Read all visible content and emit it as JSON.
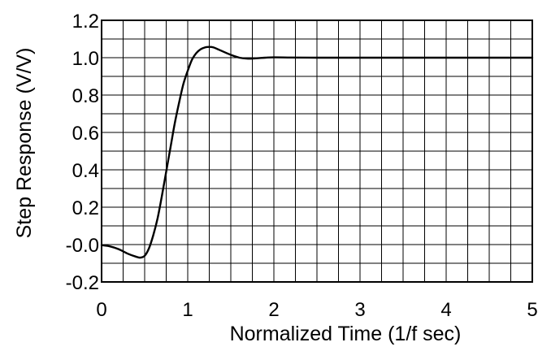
{
  "chart_data": {
    "type": "line",
    "xlabel": "Normalized Time (1/f sec)",
    "ylabel": "Step Response (V/V)",
    "xlim": [
      0,
      5
    ],
    "ylim": [
      -0.2,
      1.2
    ],
    "x_ticks": [
      "0",
      "1",
      "2",
      "3",
      "4",
      "5"
    ],
    "y_ticks": [
      "1.2",
      "1.0",
      "0.8",
      "0.6",
      "0.4",
      "0.2",
      "-0.0",
      "-0.2"
    ],
    "grid": true,
    "series": [
      {
        "color": "#000000",
        "x": [
          0,
          0.1,
          0.2,
          0.3,
          0.4,
          0.45,
          0.5,
          0.55,
          0.6,
          0.65,
          0.7,
          0.75,
          0.8,
          0.85,
          0.9,
          0.95,
          1.0,
          1.05,
          1.1,
          1.15,
          1.2,
          1.25,
          1.3,
          1.35,
          1.4,
          1.5,
          1.6,
          1.7,
          1.8,
          1.9,
          2.0,
          2.2,
          2.5,
          3.0,
          4.0,
          5.0
        ],
        "y": [
          -0.003,
          -0.01,
          -0.025,
          -0.048,
          -0.065,
          -0.07,
          -0.06,
          -0.02,
          0.05,
          0.14,
          0.26,
          0.39,
          0.52,
          0.65,
          0.76,
          0.86,
          0.93,
          0.99,
          1.025,
          1.045,
          1.055,
          1.058,
          1.055,
          1.045,
          1.035,
          1.015,
          1.0,
          0.995,
          0.997,
          1.0,
          1.002,
          1.001,
          1.0,
          1.0,
          1.0,
          1.0
        ]
      }
    ]
  }
}
